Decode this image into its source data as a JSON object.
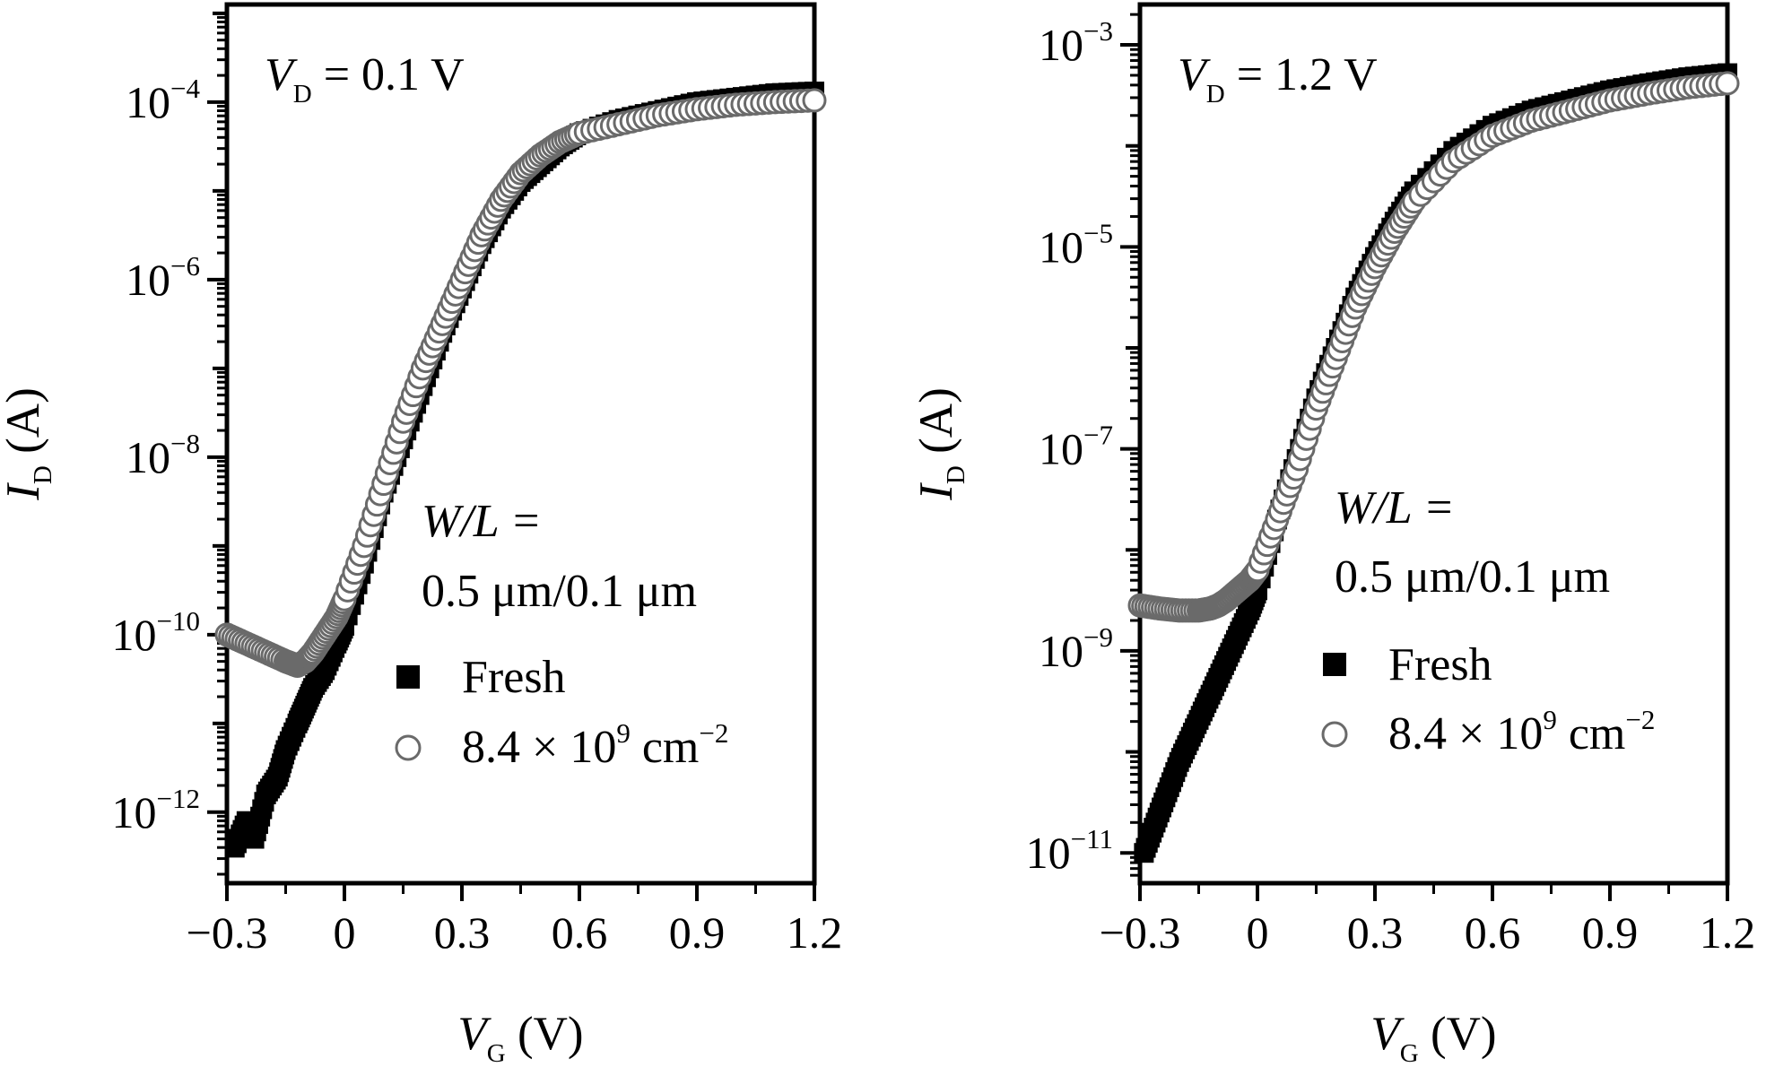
{
  "chart_data": [
    {
      "type": "scatter",
      "panel": "left",
      "annotation_vd": {
        "var": "V",
        "sub": "D",
        "rest": " = 0.1 V"
      },
      "annotation_wl": {
        "line1": "W/L =",
        "line2": "0.5 μm/0.1 μm"
      },
      "xlabel": {
        "var": "V",
        "sub": "G",
        "rest": " (V)"
      },
      "ylabel": {
        "var": "I",
        "sub": "D",
        "rest": " (A)"
      },
      "x_ticks": [
        {
          "value": -0.3,
          "label": "−0.3"
        },
        {
          "value": 0,
          "label": "0"
        },
        {
          "value": 0.3,
          "label": "0.3"
        },
        {
          "value": 0.6,
          "label": "0.6"
        },
        {
          "value": 0.9,
          "label": "0.9"
        },
        {
          "value": 1.2,
          "label": "1.2"
        }
      ],
      "y_ticks": [
        {
          "exp": -12,
          "base": "10",
          "sup": "−12"
        },
        {
          "exp": -10,
          "base": "10",
          "sup": "−10"
        },
        {
          "exp": -8,
          "base": "10",
          "sup": "−8"
        },
        {
          "exp": -6,
          "base": "10",
          "sup": "−6"
        },
        {
          "exp": -4,
          "base": "10",
          "sup": "−4"
        }
      ],
      "xlim": [
        -0.3,
        1.2
      ],
      "ylog_range": [
        -12.8,
        -2.9
      ],
      "y_scale": "log",
      "legend": [
        {
          "marker": "filled-square",
          "label_main": "Fresh",
          "label_sup": "",
          "label_tail": ""
        },
        {
          "marker": "open-circle",
          "label_main": "8.4 × 10",
          "label_sup": "9",
          "label_tail": " cm",
          "label_sup2": "−2"
        }
      ],
      "series": [
        {
          "name": "Fresh",
          "marker": "filled-square",
          "x": [
            -0.28,
            -0.25,
            -0.23,
            -0.2,
            -0.17,
            -0.15,
            -0.12,
            -0.1,
            -0.08,
            -0.05,
            -0.02,
            0,
            0.05,
            0.1,
            0.15,
            0.2,
            0.25,
            0.3,
            0.35,
            0.4,
            0.45,
            0.5,
            0.55,
            0.6,
            0.7,
            0.8,
            0.9,
            1.0,
            1.1,
            1.2
          ],
          "logy": [
            -12.4,
            -12.1,
            -12.3,
            -11.8,
            -11.6,
            -11.3,
            -11.0,
            -10.8,
            -10.6,
            -10.4,
            -10.1,
            -9.9,
            -9.2,
            -8.4,
            -7.8,
            -7.2,
            -6.6,
            -6.1,
            -5.6,
            -5.2,
            -4.9,
            -4.7,
            -4.5,
            -4.35,
            -4.2,
            -4.1,
            -4.0,
            -3.95,
            -3.9,
            -3.88
          ]
        },
        {
          "name": "8.4 × 10⁹ cm⁻²",
          "marker": "open-circle",
          "x": [
            -0.3,
            -0.25,
            -0.2,
            -0.15,
            -0.12,
            -0.1,
            -0.08,
            -0.05,
            -0.02,
            0,
            0.05,
            0.1,
            0.15,
            0.2,
            0.25,
            0.3,
            0.35,
            0.4,
            0.45,
            0.5,
            0.55,
            0.6,
            0.7,
            0.8,
            0.9,
            1.0,
            1.1,
            1.2
          ],
          "logy": [
            -10.0,
            -10.1,
            -10.2,
            -10.3,
            -10.35,
            -10.3,
            -10.2,
            -10.0,
            -9.8,
            -9.6,
            -9.0,
            -8.3,
            -7.6,
            -7.0,
            -6.5,
            -6.0,
            -5.5,
            -5.1,
            -4.8,
            -4.6,
            -4.45,
            -4.35,
            -4.25,
            -4.15,
            -4.08,
            -4.03,
            -4.0,
            -3.98
          ]
        }
      ]
    },
    {
      "type": "scatter",
      "panel": "right",
      "annotation_vd": {
        "var": "V",
        "sub": "D",
        "rest": " = 1.2 V"
      },
      "annotation_wl": {
        "line1": "W/L =",
        "line2": "0.5 μm/0.1 μm"
      },
      "xlabel": {
        "var": "V",
        "sub": "G",
        "rest": " (V)"
      },
      "ylabel": {
        "var": "I",
        "sub": "D",
        "rest": " (A)"
      },
      "x_ticks": [
        {
          "value": -0.3,
          "label": "−0.3"
        },
        {
          "value": 0,
          "label": "0"
        },
        {
          "value": 0.3,
          "label": "0.3"
        },
        {
          "value": 0.6,
          "label": "0.6"
        },
        {
          "value": 0.9,
          "label": "0.9"
        },
        {
          "value": 1.2,
          "label": "1.2"
        }
      ],
      "y_ticks": [
        {
          "exp": -11,
          "base": "10",
          "sup": "−11"
        },
        {
          "exp": -9,
          "base": "10",
          "sup": "−9"
        },
        {
          "exp": -7,
          "base": "10",
          "sup": "−7"
        },
        {
          "exp": -5,
          "base": "10",
          "sup": "−5"
        },
        {
          "exp": -3,
          "base": "10",
          "sup": "−3"
        }
      ],
      "xlim": [
        -0.3,
        1.2
      ],
      "ylog_range": [
        -11.3,
        -2.6
      ],
      "y_scale": "log",
      "legend": [
        {
          "marker": "filled-square",
          "label_main": "Fresh",
          "label_sup": "",
          "label_tail": ""
        },
        {
          "marker": "open-circle",
          "label_main": "8.4 × 10",
          "label_sup": "9",
          "label_tail": " cm",
          "label_sup2": "−2"
        }
      ],
      "series": [
        {
          "name": "Fresh",
          "marker": "filled-square",
          "x": [
            -0.29,
            -0.26,
            -0.23,
            -0.2,
            -0.17,
            -0.14,
            -0.11,
            -0.08,
            -0.05,
            -0.02,
            0,
            0.05,
            0.1,
            0.15,
            0.2,
            0.25,
            0.3,
            0.35,
            0.4,
            0.5,
            0.6,
            0.7,
            0.8,
            0.9,
            1.0,
            1.1,
            1.2
          ],
          "logy": [
            -11.0,
            -10.7,
            -10.4,
            -10.1,
            -9.85,
            -9.6,
            -9.35,
            -9.1,
            -8.85,
            -8.6,
            -8.4,
            -7.7,
            -7.1,
            -6.5,
            -6.0,
            -5.5,
            -5.1,
            -4.75,
            -4.45,
            -4.05,
            -3.8,
            -3.65,
            -3.55,
            -3.45,
            -3.38,
            -3.32,
            -3.28
          ]
        },
        {
          "name": "8.4 × 10⁹ cm⁻²",
          "marker": "open-circle",
          "x": [
            -0.3,
            -0.25,
            -0.2,
            -0.15,
            -0.12,
            -0.1,
            -0.08,
            -0.05,
            -0.02,
            0,
            0.05,
            0.1,
            0.15,
            0.2,
            0.25,
            0.3,
            0.35,
            0.4,
            0.5,
            0.6,
            0.7,
            0.8,
            0.9,
            1.0,
            1.1,
            1.2
          ],
          "logy": [
            -8.55,
            -8.58,
            -8.6,
            -8.6,
            -8.58,
            -8.55,
            -8.5,
            -8.4,
            -8.3,
            -8.2,
            -7.7,
            -7.2,
            -6.6,
            -6.1,
            -5.6,
            -5.2,
            -4.85,
            -4.55,
            -4.15,
            -3.9,
            -3.75,
            -3.65,
            -3.55,
            -3.48,
            -3.42,
            -3.38
          ]
        }
      ]
    }
  ]
}
